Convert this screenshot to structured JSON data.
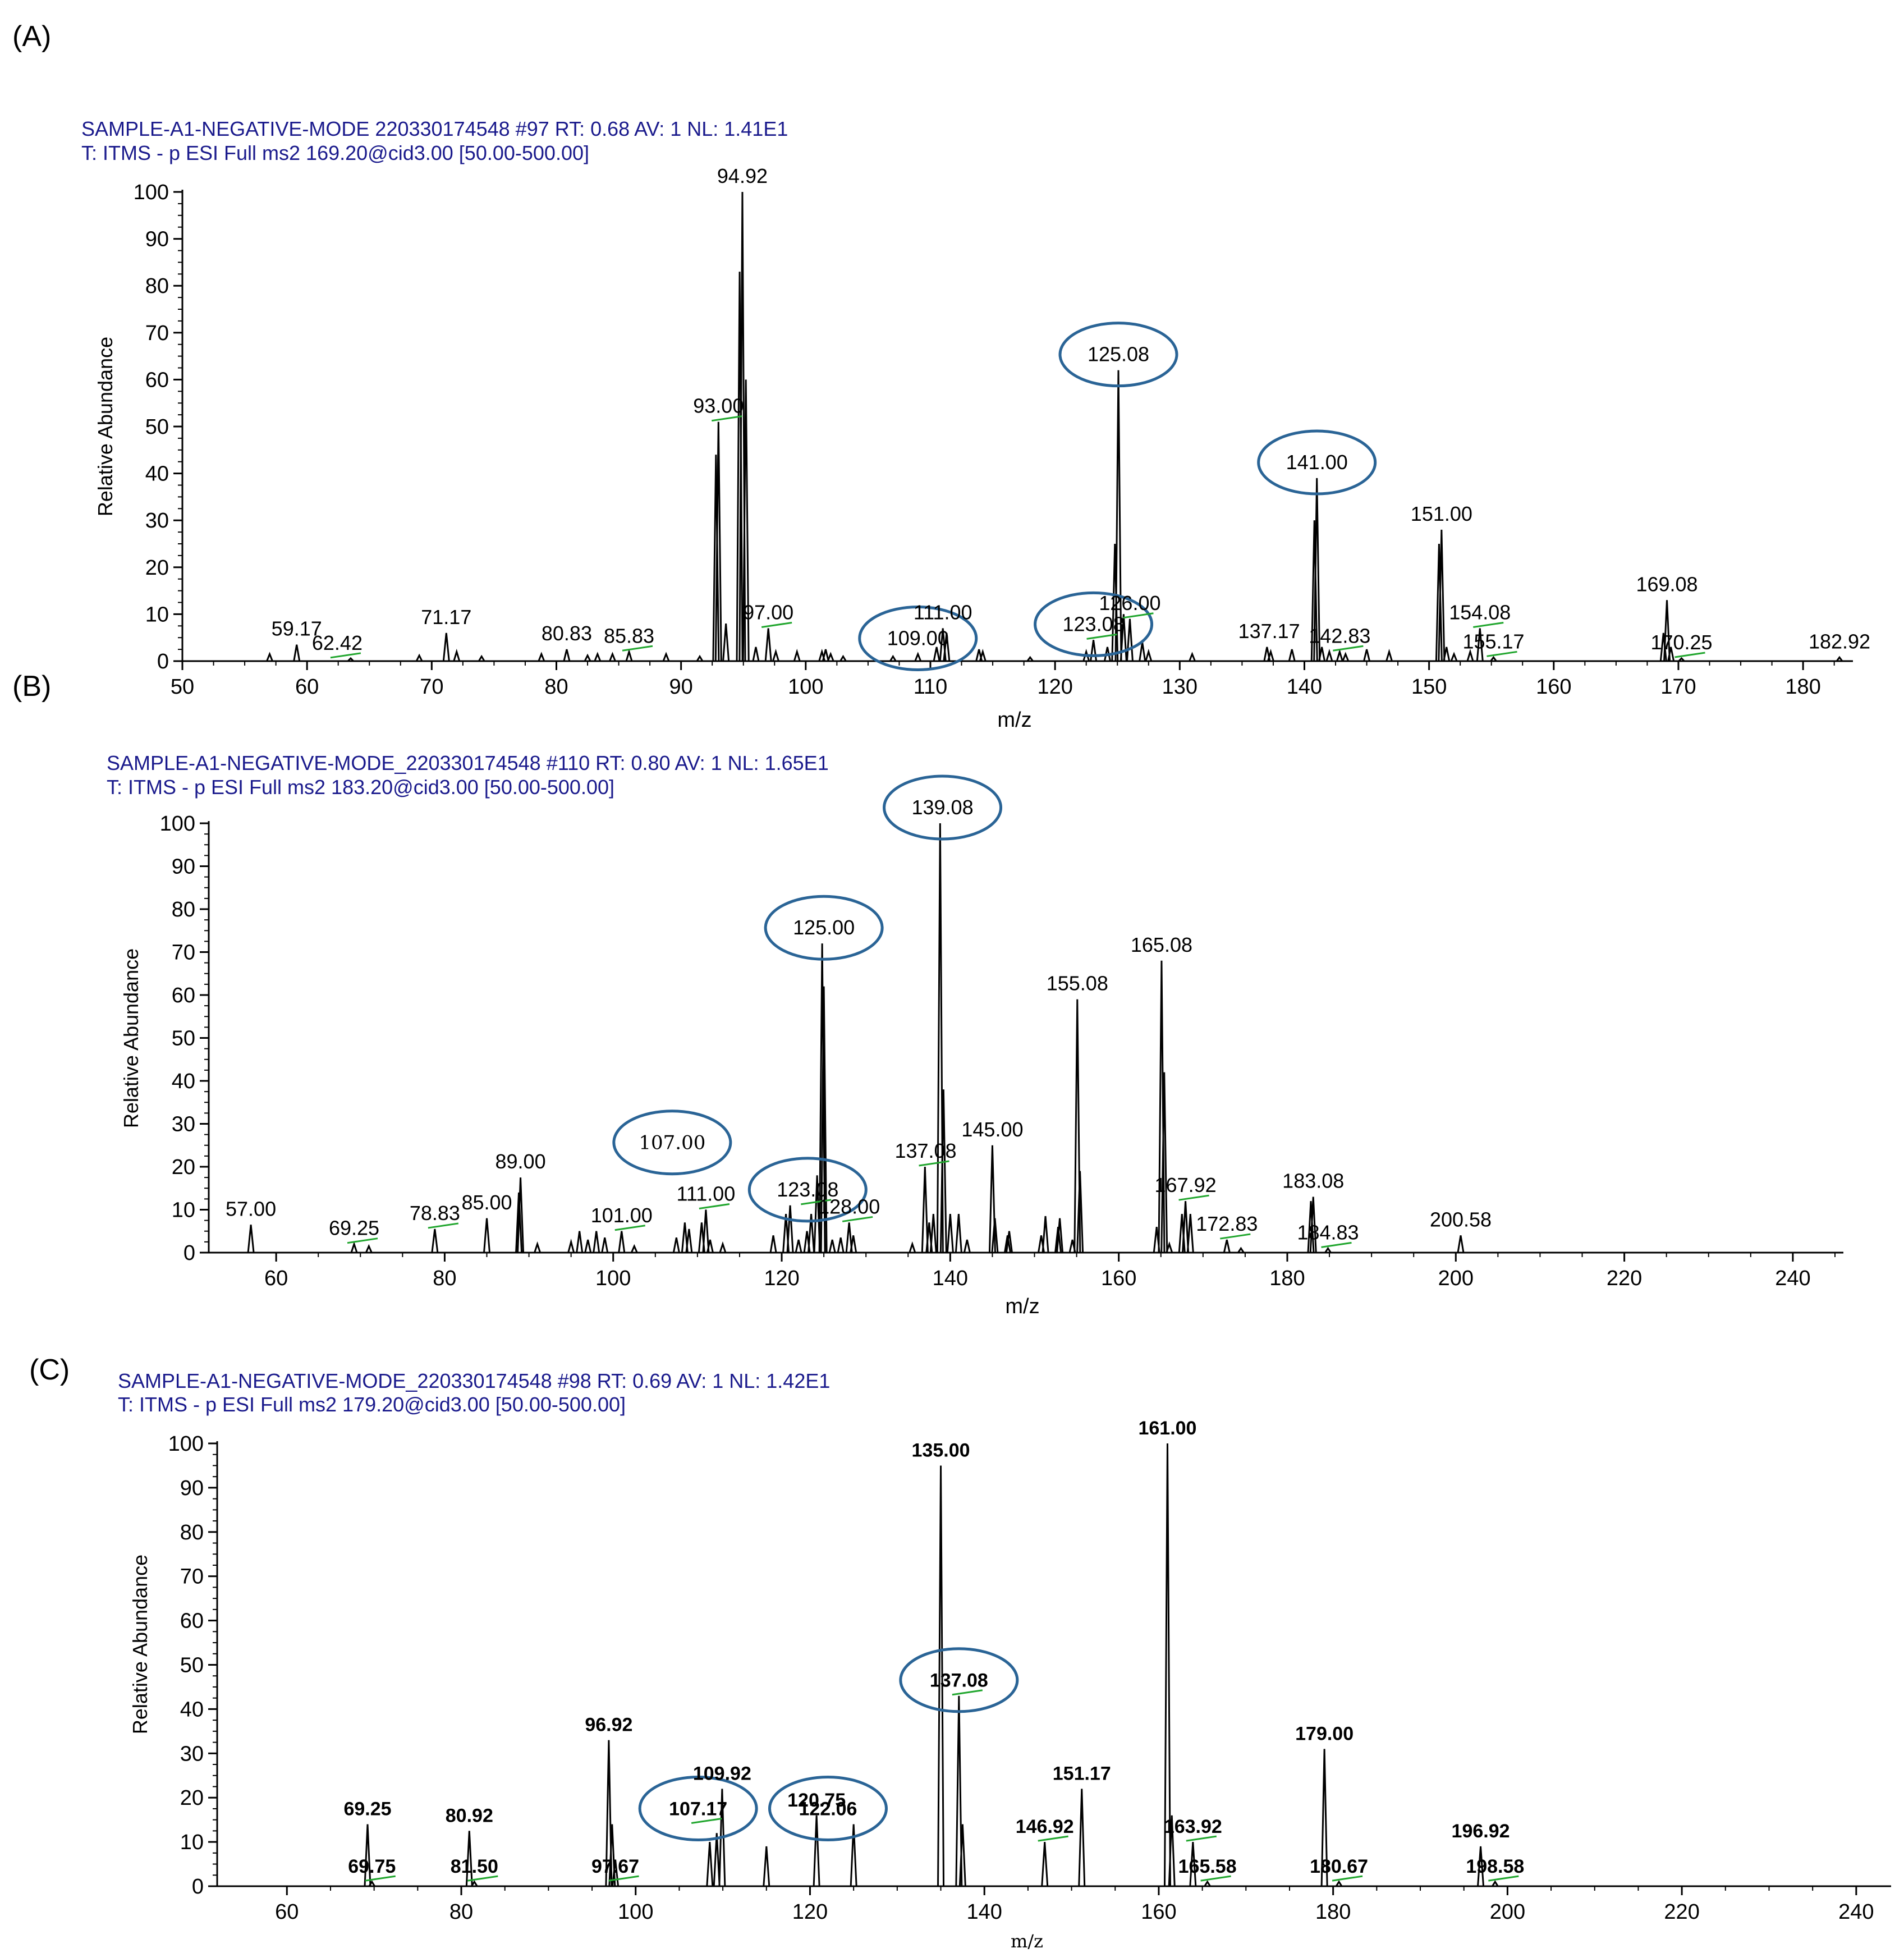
{
  "colors": {
    "axis": "#000000",
    "header": "#1a1a8c",
    "circle": "#2a6496",
    "flag": "#21a62e",
    "bar": "#000000"
  },
  "chart_data": [
    {
      "type": "bar",
      "panel": "(A)",
      "header_line1": "SAMPLE-A1-NEGATIVE-MODE  220330174548 #97   RT: 0.68   AV: 1   NL: 1.41E1",
      "header_line2": "T:  ITMS - p ESI Full ms2 169.20@cid3.00 [50.00-500.00]",
      "xlabel": "m/z",
      "ylabel": "Relative Abundance",
      "xlim": [
        50,
        184
      ],
      "ylim": [
        0,
        100
      ],
      "xticks": [
        50,
        60,
        70,
        80,
        90,
        100,
        110,
        120,
        130,
        140,
        150,
        160,
        170,
        180
      ],
      "yticks": [
        0,
        10,
        20,
        30,
        40,
        50,
        60,
        70,
        80,
        90,
        100
      ],
      "peaks": [
        {
          "x": 57.0,
          "y": 1.5
        },
        {
          "x": 59.17,
          "y": 3.5
        },
        {
          "x": 63.5,
          "y": 0.6
        },
        {
          "x": 69.0,
          "y": 1.2
        },
        {
          "x": 71.17,
          "y": 6
        },
        {
          "x": 72.0,
          "y": 2
        },
        {
          "x": 74.0,
          "y": 1
        },
        {
          "x": 78.8,
          "y": 1.5
        },
        {
          "x": 80.83,
          "y": 2.5
        },
        {
          "x": 82.5,
          "y": 1.2
        },
        {
          "x": 83.3,
          "y": 1.5
        },
        {
          "x": 84.5,
          "y": 1.5
        },
        {
          "x": 85.83,
          "y": 2
        },
        {
          "x": 88.8,
          "y": 1.5
        },
        {
          "x": 91.5,
          "y": 1
        },
        {
          "x": 92.8,
          "y": 44
        },
        {
          "x": 93.0,
          "y": 51
        },
        {
          "x": 93.6,
          "y": 8
        },
        {
          "x": 94.7,
          "y": 83
        },
        {
          "x": 94.92,
          "y": 100
        },
        {
          "x": 95.2,
          "y": 60
        },
        {
          "x": 96.0,
          "y": 3
        },
        {
          "x": 97.0,
          "y": 7
        },
        {
          "x": 97.6,
          "y": 2
        },
        {
          "x": 99.3,
          "y": 2
        },
        {
          "x": 101.3,
          "y": 2
        },
        {
          "x": 101.6,
          "y": 2.5
        },
        {
          "x": 102.0,
          "y": 1.5
        },
        {
          "x": 103.0,
          "y": 1
        },
        {
          "x": 107.0,
          "y": 1
        },
        {
          "x": 109.0,
          "y": 1.5
        },
        {
          "x": 110.5,
          "y": 3
        },
        {
          "x": 111.0,
          "y": 7
        },
        {
          "x": 111.3,
          "y": 6
        },
        {
          "x": 113.9,
          "y": 2.5
        },
        {
          "x": 114.2,
          "y": 2
        },
        {
          "x": 118.0,
          "y": 0.8
        },
        {
          "x": 122.5,
          "y": 2
        },
        {
          "x": 123.08,
          "y": 4.5
        },
        {
          "x": 124.2,
          "y": 3
        },
        {
          "x": 124.8,
          "y": 25
        },
        {
          "x": 125.08,
          "y": 62
        },
        {
          "x": 125.5,
          "y": 10
        },
        {
          "x": 126.0,
          "y": 9
        },
        {
          "x": 127.0,
          "y": 4
        },
        {
          "x": 127.5,
          "y": 2
        },
        {
          "x": 131.0,
          "y": 1.5
        },
        {
          "x": 137.0,
          "y": 3
        },
        {
          "x": 137.3,
          "y": 2
        },
        {
          "x": 139.0,
          "y": 2.5
        },
        {
          "x": 140.8,
          "y": 30
        },
        {
          "x": 141.0,
          "y": 39
        },
        {
          "x": 141.4,
          "y": 3
        },
        {
          "x": 142.0,
          "y": 2
        },
        {
          "x": 142.83,
          "y": 2
        },
        {
          "x": 143.3,
          "y": 1.5
        },
        {
          "x": 145.0,
          "y": 2.5
        },
        {
          "x": 146.8,
          "y": 2
        },
        {
          "x": 150.8,
          "y": 25
        },
        {
          "x": 151.0,
          "y": 28
        },
        {
          "x": 151.4,
          "y": 3
        },
        {
          "x": 152.0,
          "y": 1.5
        },
        {
          "x": 153.3,
          "y": 2
        },
        {
          "x": 154.08,
          "y": 7
        },
        {
          "x": 155.17,
          "y": 0.8
        },
        {
          "x": 168.8,
          "y": 6
        },
        {
          "x": 169.08,
          "y": 13
        },
        {
          "x": 169.4,
          "y": 3
        },
        {
          "x": 170.25,
          "y": 0.6
        },
        {
          "x": 182.92,
          "y": 0.8
        }
      ],
      "labels": [
        {
          "x": 59.17,
          "y": 3.5,
          "text": "59.17"
        },
        {
          "x": 62.42,
          "y": 0.5,
          "text": "62.42",
          "flag": true
        },
        {
          "x": 71.17,
          "y": 6,
          "text": "71.17"
        },
        {
          "x": 80.83,
          "y": 2.5,
          "text": "80.83"
        },
        {
          "x": 85.83,
          "y": 2,
          "text": "85.83",
          "flag": true
        },
        {
          "x": 93.0,
          "y": 51,
          "text": "93.00",
          "flag": true
        },
        {
          "x": 94.92,
          "y": 100,
          "text": "94.92"
        },
        {
          "x": 97.0,
          "y": 7,
          "text": "97.00",
          "flag": true
        },
        {
          "x": 109.0,
          "y": 1.5,
          "text": "109.00",
          "circle": true
        },
        {
          "x": 111.0,
          "y": 7,
          "text": "111.00"
        },
        {
          "x": 123.08,
          "y": 4.5,
          "text": "123.08",
          "circle": true,
          "flag": true
        },
        {
          "x": 125.08,
          "y": 62,
          "text": "125.08",
          "circle": true
        },
        {
          "x": 126.0,
          "y": 9,
          "text": "126.00",
          "flag": true
        },
        {
          "x": 137.17,
          "y": 3,
          "text": "137.17"
        },
        {
          "x": 141.0,
          "y": 39,
          "text": "141.00",
          "circle": true
        },
        {
          "x": 142.83,
          "y": 2,
          "text": "142.83",
          "flag": true
        },
        {
          "x": 151.0,
          "y": 28,
          "text": "151.00"
        },
        {
          "x": 154.08,
          "y": 7,
          "text": "154.08",
          "flag": true
        },
        {
          "x": 155.17,
          "y": 0.8,
          "text": "155.17",
          "flag": true
        },
        {
          "x": 169.08,
          "y": 13,
          "text": "169.08"
        },
        {
          "x": 170.25,
          "y": 0.6,
          "text": "170.25",
          "flag": true
        },
        {
          "x": 182.92,
          "y": 0.8,
          "text": "182.92"
        }
      ]
    },
    {
      "type": "bar",
      "panel": "(B)",
      "header_line1": "SAMPLE-A1-NEGATIVE-MODE_220330174548 #110   RT: 0.80   AV: 1   NL: 1.65E1",
      "header_line2": "T:  ITMS - p ESI Full ms2 183.20@cid3.00 [50.00-500.00]",
      "xlabel": "m/z",
      "ylabel": "Relative Abundance",
      "xlim": [
        52,
        246
      ],
      "ylim": [
        0,
        100
      ],
      "xticks": [
        60,
        80,
        100,
        120,
        140,
        160,
        180,
        200,
        220,
        240
      ],
      "yticks": [
        0,
        10,
        20,
        30,
        40,
        50,
        60,
        70,
        80,
        90,
        100
      ],
      "peaks": [
        {
          "x": 57.0,
          "y": 6.5
        },
        {
          "x": 69.25,
          "y": 2
        },
        {
          "x": 71.0,
          "y": 1.5
        },
        {
          "x": 78.83,
          "y": 5.5
        },
        {
          "x": 85.0,
          "y": 8
        },
        {
          "x": 88.8,
          "y": 14
        },
        {
          "x": 89.0,
          "y": 17.5
        },
        {
          "x": 91.0,
          "y": 2
        },
        {
          "x": 95.0,
          "y": 2.5
        },
        {
          "x": 96.0,
          "y": 5
        },
        {
          "x": 97.0,
          "y": 3
        },
        {
          "x": 98.0,
          "y": 5
        },
        {
          "x": 99.0,
          "y": 3.5
        },
        {
          "x": 101.0,
          "y": 5
        },
        {
          "x": 102.5,
          "y": 1.5
        },
        {
          "x": 107.5,
          "y": 3.5
        },
        {
          "x": 108.5,
          "y": 7
        },
        {
          "x": 109.0,
          "y": 5.5
        },
        {
          "x": 110.5,
          "y": 7
        },
        {
          "x": 111.0,
          "y": 10
        },
        {
          "x": 111.5,
          "y": 3
        },
        {
          "x": 113.0,
          "y": 2
        },
        {
          "x": 119.0,
          "y": 4
        },
        {
          "x": 120.5,
          "y": 9
        },
        {
          "x": 121.0,
          "y": 11
        },
        {
          "x": 122.0,
          "y": 3
        },
        {
          "x": 123.0,
          "y": 5
        },
        {
          "x": 123.5,
          "y": 9
        },
        {
          "x": 124.2,
          "y": 18
        },
        {
          "x": 124.8,
          "y": 72
        },
        {
          "x": 125.0,
          "y": 62
        },
        {
          "x": 126.0,
          "y": 3
        },
        {
          "x": 127.0,
          "y": 3.5
        },
        {
          "x": 128.0,
          "y": 7
        },
        {
          "x": 128.5,
          "y": 4
        },
        {
          "x": 135.5,
          "y": 2
        },
        {
          "x": 137.0,
          "y": 20
        },
        {
          "x": 137.5,
          "y": 7
        },
        {
          "x": 138.0,
          "y": 9
        },
        {
          "x": 138.8,
          "y": 100
        },
        {
          "x": 139.2,
          "y": 38
        },
        {
          "x": 140.0,
          "y": 9
        },
        {
          "x": 141.0,
          "y": 9
        },
        {
          "x": 142.0,
          "y": 3
        },
        {
          "x": 145.0,
          "y": 25
        },
        {
          "x": 145.3,
          "y": 8
        },
        {
          "x": 146.8,
          "y": 4
        },
        {
          "x": 147.0,
          "y": 5
        },
        {
          "x": 150.8,
          "y": 4
        },
        {
          "x": 151.3,
          "y": 8.5
        },
        {
          "x": 152.8,
          "y": 6
        },
        {
          "x": 153.0,
          "y": 8
        },
        {
          "x": 154.5,
          "y": 3
        },
        {
          "x": 155.08,
          "y": 59
        },
        {
          "x": 155.4,
          "y": 19
        },
        {
          "x": 164.5,
          "y": 6
        },
        {
          "x": 165.08,
          "y": 68
        },
        {
          "x": 165.4,
          "y": 42
        },
        {
          "x": 166.0,
          "y": 2
        },
        {
          "x": 167.5,
          "y": 9
        },
        {
          "x": 167.92,
          "y": 12
        },
        {
          "x": 168.5,
          "y": 9
        },
        {
          "x": 172.83,
          "y": 3
        },
        {
          "x": 174.5,
          "y": 1
        },
        {
          "x": 182.8,
          "y": 12
        },
        {
          "x": 183.08,
          "y": 13
        },
        {
          "x": 184.83,
          "y": 1
        },
        {
          "x": 200.58,
          "y": 4
        }
      ],
      "labels": [
        {
          "x": 57.0,
          "y": 6.5,
          "text": "57.00"
        },
        {
          "x": 69.25,
          "y": 2,
          "text": "69.25",
          "flag": true
        },
        {
          "x": 78.83,
          "y": 5.5,
          "text": "78.83",
          "flag": true
        },
        {
          "x": 85.0,
          "y": 8,
          "text": "85.00"
        },
        {
          "x": 89.0,
          "y": 17.5,
          "text": "89.00"
        },
        {
          "x": 101.0,
          "y": 5,
          "text": "101.00",
          "flag": true
        },
        {
          "x": 107.0,
          "y": 22,
          "text": "107.00",
          "circle": true,
          "serif": true
        },
        {
          "x": 111.0,
          "y": 10,
          "text": "111.00",
          "flag": true
        },
        {
          "x": 123.08,
          "y": 11,
          "text": "123.08",
          "circle": true,
          "flag": true
        },
        {
          "x": 125.0,
          "y": 72,
          "text": "125.00",
          "circle": true
        },
        {
          "x": 128.0,
          "y": 7,
          "text": "128.00",
          "flag": true
        },
        {
          "x": 137.08,
          "y": 20,
          "text": "137.08",
          "flag": true
        },
        {
          "x": 139.08,
          "y": 100,
          "text": "139.08",
          "circle": true
        },
        {
          "x": 145.0,
          "y": 25,
          "text": "145.00"
        },
        {
          "x": 155.08,
          "y": 59,
          "text": "155.08"
        },
        {
          "x": 165.08,
          "y": 68,
          "text": "165.08"
        },
        {
          "x": 167.92,
          "y": 12,
          "text": "167.92",
          "flag": true
        },
        {
          "x": 172.83,
          "y": 3,
          "text": "172.83",
          "flag": true
        },
        {
          "x": 183.08,
          "y": 13,
          "text": "183.08"
        },
        {
          "x": 184.83,
          "y": 1,
          "text": "184.83",
          "flag": true
        },
        {
          "x": 200.58,
          "y": 4,
          "text": "200.58"
        }
      ]
    },
    {
      "type": "bar",
      "panel": "(C)",
      "header_line1": "SAMPLE-A1-NEGATIVE-MODE_220330174548          #98   RT:  0.69   AV:  1   NL:  1.42E1",
      "header_line2": "T:  ITMS - p ESI Full ms2 179.20@cid3.00 [50.00-500.00]",
      "xlabel": "m/z",
      "ylabel": "Relative Abundance",
      "xlim": [
        52,
        244
      ],
      "ylim": [
        0,
        100
      ],
      "xticks": [
        60,
        80,
        100,
        120,
        140,
        160,
        180,
        200,
        220,
        240
      ],
      "yticks": [
        0,
        10,
        20,
        30,
        40,
        50,
        60,
        70,
        80,
        90,
        100
      ],
      "peaks": [
        {
          "x": 69.25,
          "y": 14
        },
        {
          "x": 69.75,
          "y": 1
        },
        {
          "x": 80.92,
          "y": 12.5
        },
        {
          "x": 81.5,
          "y": 1
        },
        {
          "x": 96.92,
          "y": 33
        },
        {
          "x": 97.3,
          "y": 14
        },
        {
          "x": 97.67,
          "y": 6
        },
        {
          "x": 108.5,
          "y": 10
        },
        {
          "x": 109.3,
          "y": 12
        },
        {
          "x": 109.92,
          "y": 22
        },
        {
          "x": 115.0,
          "y": 9
        },
        {
          "x": 120.75,
          "y": 16
        },
        {
          "x": 125.0,
          "y": 14
        },
        {
          "x": 135.0,
          "y": 95
        },
        {
          "x": 137.08,
          "y": 43
        },
        {
          "x": 137.5,
          "y": 14
        },
        {
          "x": 146.92,
          "y": 10
        },
        {
          "x": 151.17,
          "y": 22
        },
        {
          "x": 161.0,
          "y": 100
        },
        {
          "x": 161.5,
          "y": 16
        },
        {
          "x": 163.92,
          "y": 10
        },
        {
          "x": 165.58,
          "y": 1
        },
        {
          "x": 179.0,
          "y": 31
        },
        {
          "x": 180.67,
          "y": 1
        },
        {
          "x": 196.92,
          "y": 9
        },
        {
          "x": 198.58,
          "y": 1
        }
      ],
      "labels": [
        {
          "x": 69.25,
          "y": 14,
          "text": "69.25",
          "bold": true
        },
        {
          "x": 69.75,
          "y": 1,
          "text": "69.75",
          "bold": true,
          "flag": true
        },
        {
          "x": 80.92,
          "y": 12.5,
          "text": "80.92",
          "bold": true
        },
        {
          "x": 81.5,
          "y": 1,
          "text": "81.50",
          "bold": true,
          "flag": true
        },
        {
          "x": 96.92,
          "y": 33,
          "text": "96.92",
          "bold": true
        },
        {
          "x": 97.67,
          "y": 1,
          "text": "97.67",
          "bold": true,
          "flag": true
        },
        {
          "x": 107.17,
          "y": 14,
          "text": "107.17",
          "bold": true,
          "circle": true,
          "flag": true
        },
        {
          "x": 109.92,
          "y": 22,
          "text": "109.92",
          "bold": true
        },
        {
          "x": 120.75,
          "y": 16,
          "text": "120.75",
          "bold": true
        },
        {
          "x": 122.06,
          "y": 14,
          "text": "122.06",
          "bold": true,
          "circle": true
        },
        {
          "x": 135.0,
          "y": 95,
          "text": "135.00",
          "bold": true
        },
        {
          "x": 137.08,
          "y": 43,
          "text": "137.08",
          "bold": true,
          "circle": true,
          "flag": true
        },
        {
          "x": 146.92,
          "y": 10,
          "text": "146.92",
          "bold": true,
          "flag": true
        },
        {
          "x": 151.17,
          "y": 22,
          "text": "151.17",
          "bold": true
        },
        {
          "x": 161.0,
          "y": 100,
          "text": "161.00",
          "bold": true
        },
        {
          "x": 163.92,
          "y": 10,
          "text": "163.92",
          "bold": true,
          "flag": true
        },
        {
          "x": 165.58,
          "y": 1,
          "text": "165.58",
          "bold": true,
          "flag": true
        },
        {
          "x": 179.0,
          "y": 31,
          "text": "179.00",
          "bold": true
        },
        {
          "x": 180.67,
          "y": 1,
          "text": "180.67",
          "bold": true,
          "flag": true
        },
        {
          "x": 196.92,
          "y": 9,
          "text": "196.92",
          "bold": true
        },
        {
          "x": 198.58,
          "y": 1,
          "text": "198.58",
          "bold": true,
          "flag": true
        }
      ]
    }
  ]
}
